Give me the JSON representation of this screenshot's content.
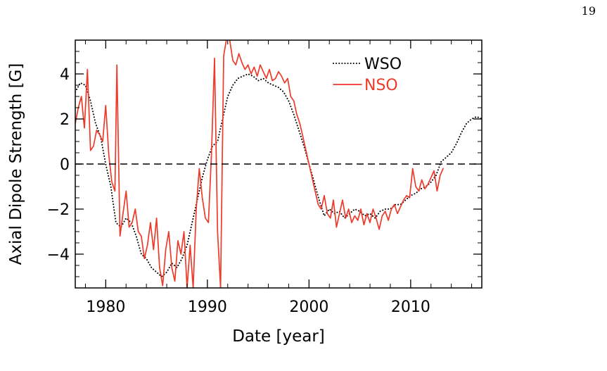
{
  "page_number": "19",
  "chart_data": {
    "type": "line",
    "title": "",
    "xlabel": "Date [year]",
    "ylabel": "Axial Dipole Strength [G]",
    "xlim": [
      1977,
      2017
    ],
    "ylim": [
      -5.5,
      5.5
    ],
    "x_ticks": [
      1980,
      1990,
      2000,
      2010
    ],
    "y_ticks": [
      4,
      2,
      0,
      -2,
      -4
    ],
    "y_tick_labels": [
      "4",
      "2",
      "0",
      "−2",
      "−4"
    ],
    "reference_line": {
      "y": 0,
      "style": "dashed"
    },
    "legend": {
      "position": "top-right",
      "entries": [
        "WSO",
        "NSO"
      ]
    },
    "series": [
      {
        "name": "WSO",
        "color": "#000000",
        "style": "dotted",
        "x": [
          1977.0,
          1977.5,
          1978.0,
          1978.5,
          1979.0,
          1979.5,
          1980.0,
          1980.5,
          1981.0,
          1981.5,
          1982.0,
          1982.5,
          1983.0,
          1983.5,
          1984.0,
          1984.5,
          1985.0,
          1985.5,
          1986.0,
          1986.5,
          1987.0,
          1987.5,
          1988.0,
          1988.5,
          1989.0,
          1989.5,
          1990.0,
          1990.5,
          1991.0,
          1991.5,
          1992.0,
          1992.5,
          1993.0,
          1993.5,
          1994.0,
          1994.5,
          1995.0,
          1995.5,
          1996.0,
          1996.5,
          1997.0,
          1997.5,
          1998.0,
          1998.5,
          1999.0,
          1999.5,
          2000.0,
          2000.5,
          2001.0,
          2001.5,
          2002.0,
          2002.5,
          2003.0,
          2003.5,
          2004.0,
          2004.5,
          2005.0,
          2005.5,
          2006.0,
          2006.5,
          2007.0,
          2007.5,
          2008.0,
          2008.5,
          2009.0,
          2009.5,
          2010.0,
          2010.5,
          2011.0,
          2011.5,
          2012.0,
          2012.5,
          2013.0,
          2013.5,
          2014.0,
          2014.5,
          2015.0,
          2015.5,
          2016.0,
          2016.5,
          2017.0
        ],
        "y": [
          3.2,
          3.6,
          3.5,
          2.8,
          1.8,
          1.2,
          0.0,
          -1.0,
          -2.6,
          -2.8,
          -2.4,
          -2.6,
          -3.2,
          -4.0,
          -4.2,
          -4.6,
          -4.8,
          -5.0,
          -4.8,
          -4.4,
          -4.6,
          -4.2,
          -3.6,
          -2.6,
          -1.6,
          -0.6,
          0.2,
          0.8,
          1.0,
          2.0,
          3.0,
          3.5,
          3.8,
          3.9,
          4.0,
          3.9,
          3.7,
          3.8,
          3.6,
          3.5,
          3.4,
          3.2,
          2.8,
          2.2,
          1.5,
          0.8,
          0.0,
          -0.8,
          -1.6,
          -2.3,
          -2.0,
          -2.2,
          -2.1,
          -2.4,
          -2.2,
          -2.0,
          -2.1,
          -2.3,
          -2.2,
          -2.4,
          -2.1,
          -2.0,
          -2.0,
          -1.8,
          -1.8,
          -1.6,
          -1.4,
          -1.3,
          -1.1,
          -1.0,
          -0.8,
          -0.5,
          0.1,
          0.3,
          0.5,
          0.9,
          1.4,
          1.8,
          2.0,
          2.1,
          2.0
        ]
      },
      {
        "name": "NSO",
        "color": "#ee3a2a",
        "style": "solid",
        "x": [
          1977.0,
          1977.3,
          1977.6,
          1977.9,
          1978.2,
          1978.5,
          1978.8,
          1979.1,
          1979.4,
          1979.7,
          1980.0,
          1980.3,
          1980.6,
          1980.9,
          1981.1,
          1981.4,
          1981.7,
          1982.0,
          1982.3,
          1982.6,
          1982.9,
          1983.2,
          1983.5,
          1983.8,
          1984.1,
          1984.4,
          1984.7,
          1985.0,
          1985.3,
          1985.6,
          1985.9,
          1986.2,
          1986.5,
          1986.8,
          1987.1,
          1987.4,
          1987.7,
          1988.0,
          1988.3,
          1988.6,
          1988.9,
          1989.2,
          1989.5,
          1989.8,
          1990.1,
          1990.4,
          1990.7,
          1991.0,
          1991.3,
          1991.6,
          1991.9,
          1992.2,
          1992.5,
          1992.8,
          1993.1,
          1993.4,
          1993.7,
          1994.0,
          1994.3,
          1994.6,
          1994.9,
          1995.2,
          1995.5,
          1995.8,
          1996.1,
          1996.4,
          1996.7,
          1997.0,
          1997.3,
          1997.6,
          1997.9,
          1998.2,
          1998.5,
          1998.8,
          1999.1,
          1999.4,
          1999.7,
          2000.0,
          2000.3,
          2000.6,
          2000.9,
          2001.2,
          2001.5,
          2001.8,
          2002.1,
          2002.4,
          2002.7,
          2003.0,
          2003.3,
          2003.6,
          2003.9,
          2004.2,
          2004.5,
          2004.8,
          2005.1,
          2005.4,
          2005.7,
          2006.0,
          2006.3,
          2006.6,
          2006.9,
          2007.2,
          2007.5,
          2007.8,
          2008.1,
          2008.4,
          2008.7,
          2009.0,
          2009.3,
          2009.6,
          2009.9,
          2010.2,
          2010.5,
          2010.8,
          2011.1,
          2011.4,
          2011.7,
          2012.0,
          2012.3,
          2012.6,
          2012.9,
          2013.2
        ],
        "y": [
          1.8,
          2.5,
          3.0,
          1.6,
          4.2,
          0.6,
          0.8,
          1.5,
          1.3,
          1.0,
          2.6,
          0.4,
          -0.8,
          -1.2,
          4.4,
          -3.2,
          -2.2,
          -1.2,
          -2.8,
          -2.6,
          -2.0,
          -3.0,
          -3.2,
          -4.2,
          -3.6,
          -2.6,
          -3.8,
          -2.4,
          -4.6,
          -5.4,
          -3.8,
          -3.0,
          -4.6,
          -5.2,
          -3.4,
          -4.0,
          -3.0,
          -5.5,
          -3.6,
          -5.5,
          -2.0,
          -0.2,
          -1.5,
          -2.4,
          -2.6,
          0.4,
          4.7,
          -3.0,
          -5.5,
          4.8,
          5.6,
          5.5,
          4.6,
          4.4,
          4.9,
          4.5,
          4.2,
          4.4,
          4.0,
          4.3,
          3.9,
          4.4,
          4.1,
          3.8,
          4.2,
          3.7,
          3.8,
          4.1,
          3.9,
          3.6,
          3.8,
          3.0,
          2.8,
          2.2,
          1.8,
          1.2,
          0.6,
          0.0,
          -0.6,
          -1.2,
          -1.8,
          -2.0,
          -1.4,
          -2.2,
          -2.4,
          -1.6,
          -2.8,
          -2.2,
          -1.6,
          -2.4,
          -2.0,
          -2.6,
          -2.3,
          -2.5,
          -2.0,
          -2.7,
          -2.2,
          -2.6,
          -2.0,
          -2.4,
          -2.9,
          -2.3,
          -2.1,
          -2.5,
          -2.0,
          -1.8,
          -2.2,
          -1.9,
          -1.6,
          -1.4,
          -1.5,
          -0.2,
          -1.0,
          -1.2,
          -0.7,
          -1.1,
          -0.9,
          -0.6,
          -0.3,
          -1.2,
          -0.5,
          -0.2
        ]
      }
    ]
  }
}
